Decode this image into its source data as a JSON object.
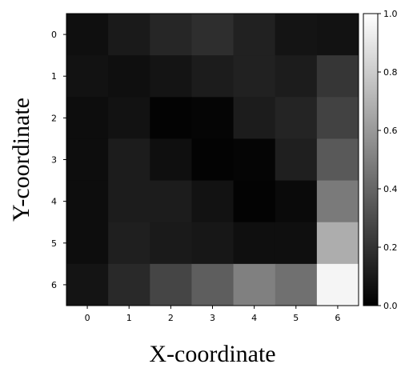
{
  "chart_data": {
    "type": "heatmap",
    "xlabel": "X-coordinate",
    "ylabel": "Y-coordinate",
    "x_tick_labels": [
      "0",
      "1",
      "2",
      "3",
      "4",
      "5",
      "6"
    ],
    "y_tick_labels": [
      "0",
      "1",
      "2",
      "3",
      "4",
      "5",
      "6"
    ],
    "colorbar": {
      "colormap": "gray",
      "range": [
        0.0,
        1.0
      ],
      "tick_labels": [
        "0.0",
        "0.2",
        "0.4",
        "0.6",
        "0.8",
        "1.0"
      ]
    },
    "values": [
      [
        0.06,
        0.1,
        0.15,
        0.18,
        0.13,
        0.08,
        0.07
      ],
      [
        0.07,
        0.06,
        0.08,
        0.11,
        0.13,
        0.11,
        0.21
      ],
      [
        0.05,
        0.07,
        0.01,
        0.02,
        0.11,
        0.14,
        0.26
      ],
      [
        0.05,
        0.11,
        0.06,
        0.01,
        0.02,
        0.12,
        0.35
      ],
      [
        0.05,
        0.11,
        0.11,
        0.07,
        0.01,
        0.04,
        0.48
      ],
      [
        0.05,
        0.12,
        0.1,
        0.09,
        0.06,
        0.06,
        0.68
      ],
      [
        0.08,
        0.16,
        0.27,
        0.37,
        0.5,
        0.44,
        0.96
      ]
    ],
    "grid": false
  }
}
